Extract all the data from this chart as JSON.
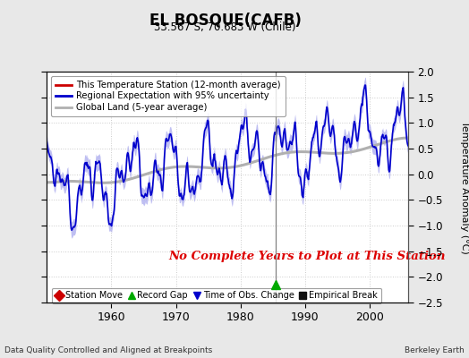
{
  "title": "EL BOSQUE(CAFB)",
  "subtitle": "33.567 S, 70.683 W (Chile)",
  "ylabel": "Temperature Anomaly (°C)",
  "xlabel_left": "Data Quality Controlled and Aligned at Breakpoints",
  "xlabel_right": "Berkeley Earth",
  "no_data_text": "No Complete Years to Plot at This Station",
  "ylim": [
    -2.5,
    2.0
  ],
  "xlim": [
    1950,
    2006
  ],
  "xticks": [
    1960,
    1970,
    1980,
    1990,
    2000
  ],
  "yticks": [
    -2.5,
    -2.0,
    -1.5,
    -1.0,
    -0.5,
    0.0,
    0.5,
    1.0,
    1.5,
    2.0
  ],
  "regional_color": "#0000cc",
  "regional_fill_color": "#aaaaee",
  "station_color": "#cc0000",
  "global_color": "#b0b0b0",
  "bg_color": "#e8e8e8",
  "plot_bg_color": "#ffffff",
  "vertical_line_x": 1985.5,
  "vertical_line_color": "#808080",
  "record_gap_x": 1985.5,
  "record_gap_y": -2.15,
  "legend_entries": [
    {
      "label": "This Temperature Station (12-month average)",
      "color": "#cc0000",
      "lw": 2
    },
    {
      "label": "Regional Expectation with 95% uncertainty",
      "color": "#0000cc",
      "lw": 2
    },
    {
      "label": "Global Land (5-year average)",
      "color": "#b0b0b0",
      "lw": 2
    }
  ],
  "marker_legend": [
    {
      "label": "Station Move",
      "color": "#cc0000",
      "marker": "D"
    },
    {
      "label": "Record Gap",
      "color": "#00aa00",
      "marker": "^"
    },
    {
      "label": "Time of Obs. Change",
      "color": "#0000cc",
      "marker": "v"
    },
    {
      "label": "Empirical Break",
      "color": "#111111",
      "marker": "s"
    }
  ]
}
